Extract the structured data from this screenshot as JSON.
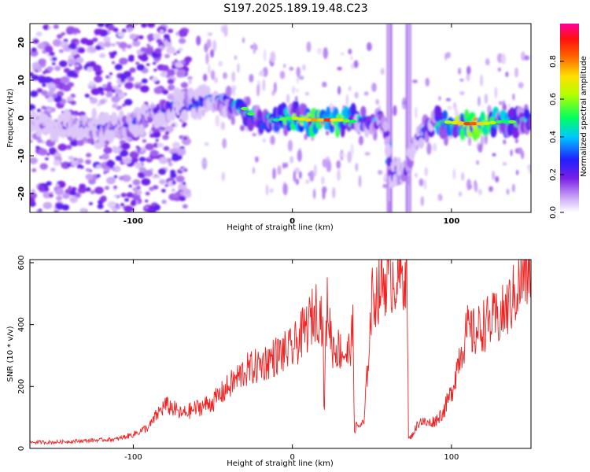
{
  "title": "S197.2025.189.19.48.C23",
  "chart_data": [
    {
      "type": "heatmap",
      "xlabel": "Height of straight line (km)",
      "ylabel": "Frequency (Hz)",
      "xlim": [
        -165,
        150
      ],
      "ylim": [
        -25,
        25
      ],
      "x_ticks": [
        -100,
        0,
        100
      ],
      "y_ticks": [
        -20,
        -10,
        0,
        10,
        20
      ],
      "colorbar": {
        "label": "Normalized spectral amplitude",
        "range": [
          0,
          1
        ],
        "ticks": [
          0.0,
          0.2,
          0.4,
          0.6,
          0.8
        ],
        "colormap": "rainbow (white-purple-blue-cyan-green-yellow-red-magenta)"
      },
      "ridge": [
        {
          "x": -165,
          "f": -1.5,
          "amp": 0.15
        },
        {
          "x": -140,
          "f": -2,
          "amp": 0.2
        },
        {
          "x": -125,
          "f": -2,
          "amp": 0.25
        },
        {
          "x": -110,
          "f": -3,
          "amp": 0.28
        },
        {
          "x": -95,
          "f": -1,
          "amp": 0.3
        },
        {
          "x": -85,
          "f": 2,
          "amp": 0.32
        },
        {
          "x": -75,
          "f": 3,
          "amp": 0.33
        },
        {
          "x": -60,
          "f": 4,
          "amp": 0.35
        },
        {
          "x": -50,
          "f": 5,
          "amp": 0.35
        },
        {
          "x": -40,
          "f": 4,
          "amp": 0.38
        },
        {
          "x": -30,
          "f": 2.5,
          "amp": 0.6
        },
        {
          "x": -20,
          "f": -1,
          "amp": 0.45
        },
        {
          "x": -10,
          "f": -0.5,
          "amp": 0.5
        },
        {
          "x": 0,
          "f": 0,
          "amp": 0.6
        },
        {
          "x": 10,
          "f": -0.5,
          "amp": 0.7
        },
        {
          "x": 20,
          "f": -0.5,
          "amp": 0.85
        },
        {
          "x": 30,
          "f": -0.5,
          "amp": 0.75
        },
        {
          "x": 40,
          "f": -1,
          "amp": 0.45
        },
        {
          "x": 50,
          "f": -1,
          "amp": 0.4
        },
        {
          "x": 58,
          "f": -1,
          "amp": 0.35
        },
        {
          "x": 62,
          "f": -15,
          "amp": 0.35
        },
        {
          "x": 70,
          "f": -15,
          "amp": 0.35
        },
        {
          "x": 78,
          "f": -6,
          "amp": 0.3
        },
        {
          "x": 85,
          "f": -2,
          "amp": 0.4
        },
        {
          "x": 95,
          "f": -1,
          "amp": 0.5
        },
        {
          "x": 110,
          "f": -1.5,
          "amp": 0.9
        },
        {
          "x": 120,
          "f": -1.5,
          "amp": 0.8
        },
        {
          "x": 130,
          "f": -1,
          "amp": 0.6
        },
        {
          "x": 140,
          "f": -1,
          "amp": 0.5
        },
        {
          "x": 150,
          "f": -1,
          "amp": 0.4
        }
      ]
    },
    {
      "type": "line",
      "xlabel": "Height of straight line (km)",
      "ylabel": "SNR (10 * v/v)",
      "xlim": [
        -165,
        150
      ],
      "ylim": [
        0,
        610
      ],
      "x_ticks": [
        -100,
        0,
        100
      ],
      "y_ticks": [
        0,
        200,
        400,
        600
      ],
      "series": [
        {
          "color": "#ee2222",
          "x": [
            -165,
            -150,
            -130,
            -110,
            -100,
            -90,
            -85,
            -80,
            -75,
            -70,
            -60,
            -50,
            -40,
            -30,
            -20,
            -10,
            0,
            5,
            10,
            15,
            19,
            20,
            21,
            22,
            25,
            30,
            35,
            38,
            39,
            40,
            45,
            50,
            55,
            60,
            65,
            70,
            72,
            73,
            75,
            80,
            85,
            90,
            95,
            100,
            105,
            110,
            115,
            120,
            125,
            130,
            135,
            140,
            145,
            150
          ],
          "y": [
            20,
            20,
            25,
            30,
            45,
            70,
            110,
            140,
            130,
            110,
            130,
            150,
            200,
            250,
            270,
            300,
            320,
            360,
            400,
            450,
            420,
            100,
            350,
            470,
            330,
            320,
            300,
            380,
            60,
            70,
            80,
            480,
            520,
            560,
            550,
            560,
            600,
            30,
            40,
            90,
            80,
            90,
            120,
            180,
            300,
            380,
            370,
            400,
            410,
            420,
            450,
            500,
            550,
            580
          ]
        }
      ]
    }
  ]
}
